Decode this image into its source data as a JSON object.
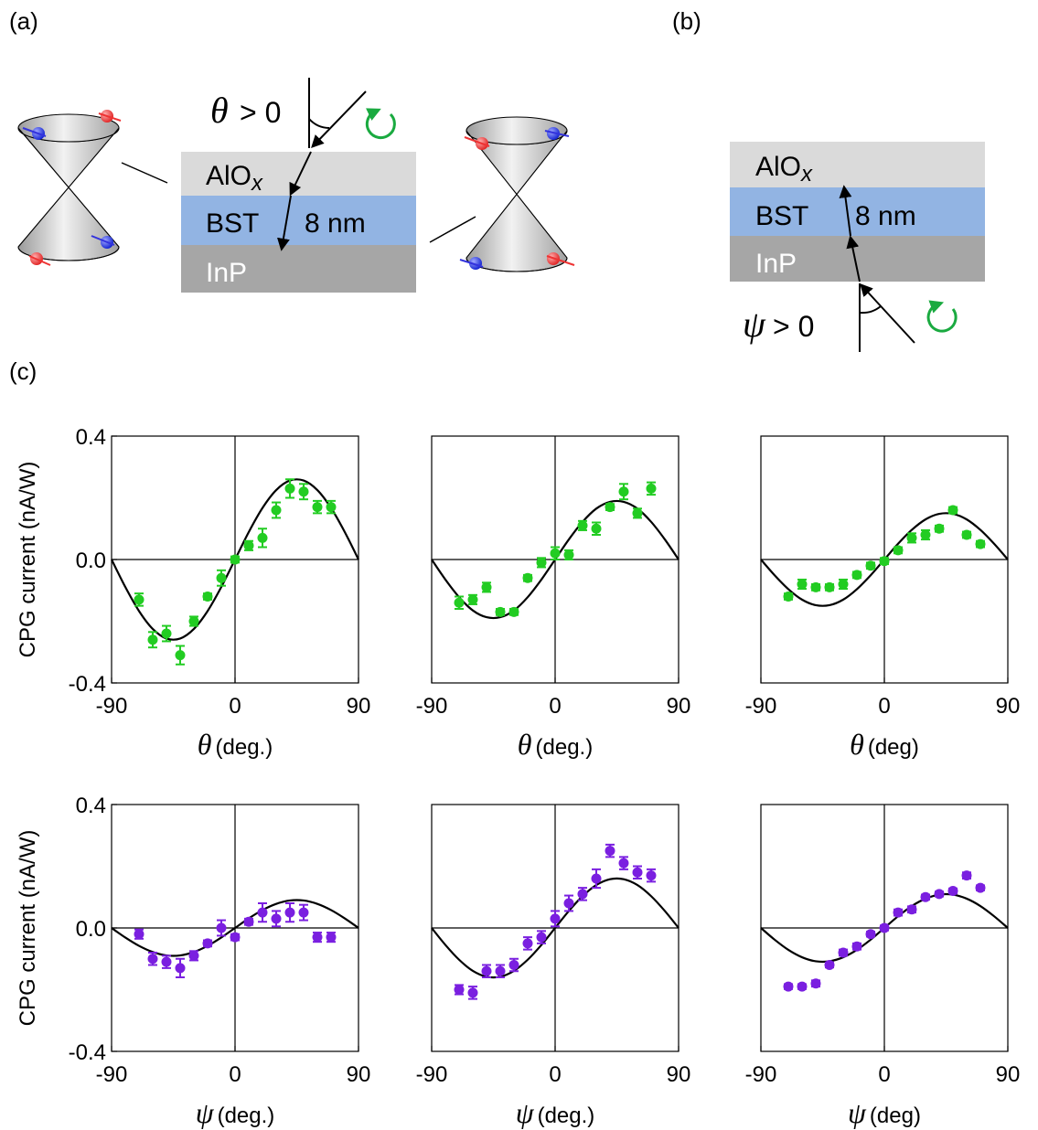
{
  "figure": {
    "panel_labels": [
      "(a)",
      "(b)",
      "(c)"
    ],
    "a": {
      "angle_symbol": "θ",
      "angle_condition": "> 0",
      "layers": [
        "AlO",
        "BST",
        "InP"
      ],
      "subscript": "x",
      "thickness": "8 nm"
    },
    "b": {
      "angle_symbol": "ψ",
      "angle_condition": "> 0",
      "layers": [
        "AlO",
        "BST",
        "InP"
      ],
      "subscript": "x",
      "thickness": "8 nm"
    }
  },
  "chart_data": [
    {
      "type": "scatter",
      "color": "#22cc22",
      "xlabel_symbol": "θ",
      "xlabel": "(deg.)",
      "ylabel": "CPG current (nA/W)",
      "xlim": [
        -90,
        90
      ],
      "xticks": [
        -90,
        0,
        90
      ],
      "ylim": [
        -0.4,
        0.4
      ],
      "yticks": [
        -0.4,
        {
          "value": 0,
          "label": "0.0"
        },
        0.4
      ],
      "x": [
        -70,
        -60,
        -50,
        -40,
        -30,
        -20,
        -10,
        0,
        10,
        20,
        30,
        40,
        50,
        60,
        70
      ],
      "y": [
        -0.13,
        -0.26,
        -0.24,
        -0.31,
        -0.2,
        -0.12,
        -0.06,
        0.0,
        0.045,
        0.07,
        0.16,
        0.23,
        0.22,
        0.17,
        0.17
      ],
      "err": [
        0.02,
        0.025,
        0.025,
        0.03,
        0.015,
        0.01,
        0.025,
        0.01,
        0.015,
        0.03,
        0.025,
        0.03,
        0.025,
        0.02,
        0.02
      ],
      "fit": {
        "x": [
          -90,
          -80,
          -70,
          -60,
          -50,
          -40,
          -30,
          -20,
          -10,
          0,
          10,
          20,
          30,
          40,
          50,
          60,
          70,
          80,
          90
        ],
        "y": [
          0,
          -0.089,
          -0.167,
          -0.225,
          -0.256,
          -0.256,
          -0.225,
          -0.167,
          -0.089,
          0,
          0.089,
          0.167,
          0.225,
          0.256,
          0.256,
          0.225,
          0.167,
          0.089,
          0
        ]
      }
    },
    {
      "type": "scatter",
      "color": "#22cc22",
      "xlabel_symbol": "θ",
      "xlabel": "(deg.)",
      "xlim": [
        -90,
        90
      ],
      "xticks": [
        -90,
        0,
        90
      ],
      "ylim": [
        -0.4,
        0.4
      ],
      "x": [
        -70,
        -60,
        -50,
        -40,
        -30,
        -20,
        -10,
        0,
        10,
        20,
        30,
        40,
        50,
        60,
        70
      ],
      "y": [
        -0.14,
        -0.13,
        -0.09,
        -0.17,
        -0.17,
        -0.06,
        -0.01,
        0.02,
        0.015,
        0.11,
        0.1,
        0.17,
        0.22,
        0.15,
        0.23
      ],
      "err": [
        0.02,
        0.015,
        0.015,
        0.01,
        0.01,
        0.01,
        0.015,
        0.02,
        0.015,
        0.015,
        0.02,
        0.01,
        0.025,
        0.015,
        0.02
      ],
      "fit": {
        "x": [
          -90,
          -80,
          -70,
          -60,
          -50,
          -40,
          -30,
          -20,
          -10,
          0,
          10,
          20,
          30,
          40,
          50,
          60,
          70,
          80,
          90
        ],
        "y": [
          0,
          -0.065,
          -0.122,
          -0.165,
          -0.187,
          -0.187,
          -0.165,
          -0.122,
          -0.065,
          0,
          0.065,
          0.122,
          0.165,
          0.187,
          0.187,
          0.165,
          0.122,
          0.065,
          0
        ]
      }
    },
    {
      "type": "scatter",
      "color": "#22cc22",
      "xlabel_symbol": "θ",
      "xlabel": "(deg)",
      "xlim": [
        -90,
        90
      ],
      "xticks": [
        -90,
        0,
        90
      ],
      "ylim": [
        -0.4,
        0.4
      ],
      "x": [
        -70,
        -60,
        -50,
        -40,
        -30,
        -20,
        -10,
        0,
        10,
        20,
        30,
        40,
        50,
        60,
        70
      ],
      "y": [
        -0.12,
        -0.08,
        -0.09,
        -0.09,
        -0.08,
        -0.05,
        -0.02,
        -0.005,
        0.03,
        0.07,
        0.08,
        0.1,
        0.16,
        0.08,
        0.05
      ],
      "err": [
        0.01,
        0.015,
        0.01,
        0.01,
        0.015,
        0.01,
        0.01,
        0.01,
        0.01,
        0.015,
        0.015,
        0.01,
        0.01,
        0.01,
        0.01
      ],
      "fit": {
        "x": [
          -90,
          -80,
          -70,
          -60,
          -50,
          -40,
          -30,
          -20,
          -10,
          0,
          10,
          20,
          30,
          40,
          50,
          60,
          70,
          80,
          90
        ],
        "y": [
          0,
          -0.051,
          -0.096,
          -0.13,
          -0.148,
          -0.148,
          -0.13,
          -0.096,
          -0.051,
          0,
          0.051,
          0.096,
          0.13,
          0.148,
          0.148,
          0.13,
          0.096,
          0.051,
          0
        ]
      }
    },
    {
      "type": "scatter",
      "color": "#7a1fe0",
      "xlabel_symbol": "ψ",
      "xlabel": "(deg.)",
      "ylabel": "CPG current (nA/W)",
      "xlim": [
        -90,
        90
      ],
      "xticks": [
        -90,
        0,
        90
      ],
      "ylim": [
        -0.4,
        0.4
      ],
      "yticks": [
        -0.4,
        {
          "value": 0,
          "label": "0.0"
        },
        0.4
      ],
      "x": [
        -70,
        -60,
        -50,
        -40,
        -30,
        -20,
        -10,
        0,
        10,
        20,
        30,
        40,
        50,
        60,
        70
      ],
      "y": [
        -0.02,
        -0.1,
        -0.11,
        -0.13,
        -0.09,
        -0.05,
        0.0,
        -0.03,
        0.02,
        0.05,
        0.03,
        0.05,
        0.05,
        -0.03,
        -0.03
      ],
      "err": [
        0.015,
        0.02,
        0.02,
        0.03,
        0.015,
        0.01,
        0.025,
        0.01,
        0.01,
        0.03,
        0.025,
        0.03,
        0.025,
        0.015,
        0.015
      ],
      "fit": {
        "x": [
          -90,
          -80,
          -70,
          -60,
          -50,
          -40,
          -30,
          -20,
          -10,
          0,
          10,
          20,
          30,
          40,
          50,
          60,
          70,
          80,
          90
        ],
        "y": [
          0,
          -0.031,
          -0.058,
          -0.078,
          -0.089,
          -0.089,
          -0.078,
          -0.058,
          -0.031,
          0,
          0.031,
          0.058,
          0.078,
          0.089,
          0.089,
          0.078,
          0.058,
          0.031,
          0
        ]
      }
    },
    {
      "type": "scatter",
      "color": "#7a1fe0",
      "xlabel_symbol": "ψ",
      "xlabel": "(deg.)",
      "xlim": [
        -90,
        90
      ],
      "xticks": [
        -90,
        0,
        90
      ],
      "ylim": [
        -0.4,
        0.4
      ],
      "x": [
        -70,
        -60,
        -50,
        -40,
        -30,
        -20,
        -10,
        0,
        10,
        20,
        30,
        40,
        50,
        60,
        70
      ],
      "y": [
        -0.2,
        -0.21,
        -0.14,
        -0.14,
        -0.12,
        -0.05,
        -0.03,
        0.03,
        0.08,
        0.11,
        0.16,
        0.25,
        0.21,
        0.18,
        0.17
      ],
      "err": [
        0.015,
        0.02,
        0.02,
        0.02,
        0.02,
        0.02,
        0.02,
        0.025,
        0.025,
        0.02,
        0.03,
        0.02,
        0.02,
        0.02,
        0.02
      ],
      "fit": {
        "x": [
          -90,
          -80,
          -70,
          -60,
          -50,
          -40,
          -30,
          -20,
          -10,
          0,
          10,
          20,
          30,
          40,
          50,
          60,
          70,
          80,
          90
        ],
        "y": [
          0,
          -0.055,
          -0.103,
          -0.139,
          -0.158,
          -0.158,
          -0.139,
          -0.103,
          -0.055,
          0,
          0.055,
          0.103,
          0.139,
          0.158,
          0.158,
          0.139,
          0.103,
          0.055,
          0
        ]
      }
    },
    {
      "type": "scatter",
      "color": "#7a1fe0",
      "xlabel_symbol": "ψ",
      "xlabel": "(deg)",
      "xlim": [
        -90,
        90
      ],
      "xticks": [
        -90,
        0,
        90
      ],
      "ylim": [
        -0.4,
        0.4
      ],
      "x": [
        -70,
        -60,
        -50,
        -40,
        -30,
        -20,
        -10,
        0,
        10,
        20,
        30,
        40,
        50,
        60,
        70
      ],
      "y": [
        -0.19,
        -0.19,
        -0.18,
        -0.12,
        -0.08,
        -0.06,
        -0.02,
        0.0,
        0.05,
        0.06,
        0.1,
        0.11,
        0.12,
        0.17,
        0.13
      ],
      "err": [
        0.008,
        0.008,
        0.01,
        0.008,
        0.01,
        0.01,
        0.008,
        0.008,
        0.01,
        0.01,
        0.008,
        0.008,
        0.008,
        0.01,
        0.008
      ],
      "fit": {
        "x": [
          -90,
          -80,
          -70,
          -60,
          -50,
          -40,
          -30,
          -20,
          -10,
          0,
          10,
          20,
          30,
          40,
          50,
          60,
          70,
          80,
          90
        ],
        "y": [
          0,
          -0.038,
          -0.071,
          -0.095,
          -0.108,
          -0.108,
          -0.095,
          -0.071,
          -0.038,
          0,
          0.038,
          0.071,
          0.095,
          0.108,
          0.108,
          0.095,
          0.071,
          0.038,
          0
        ]
      }
    }
  ]
}
